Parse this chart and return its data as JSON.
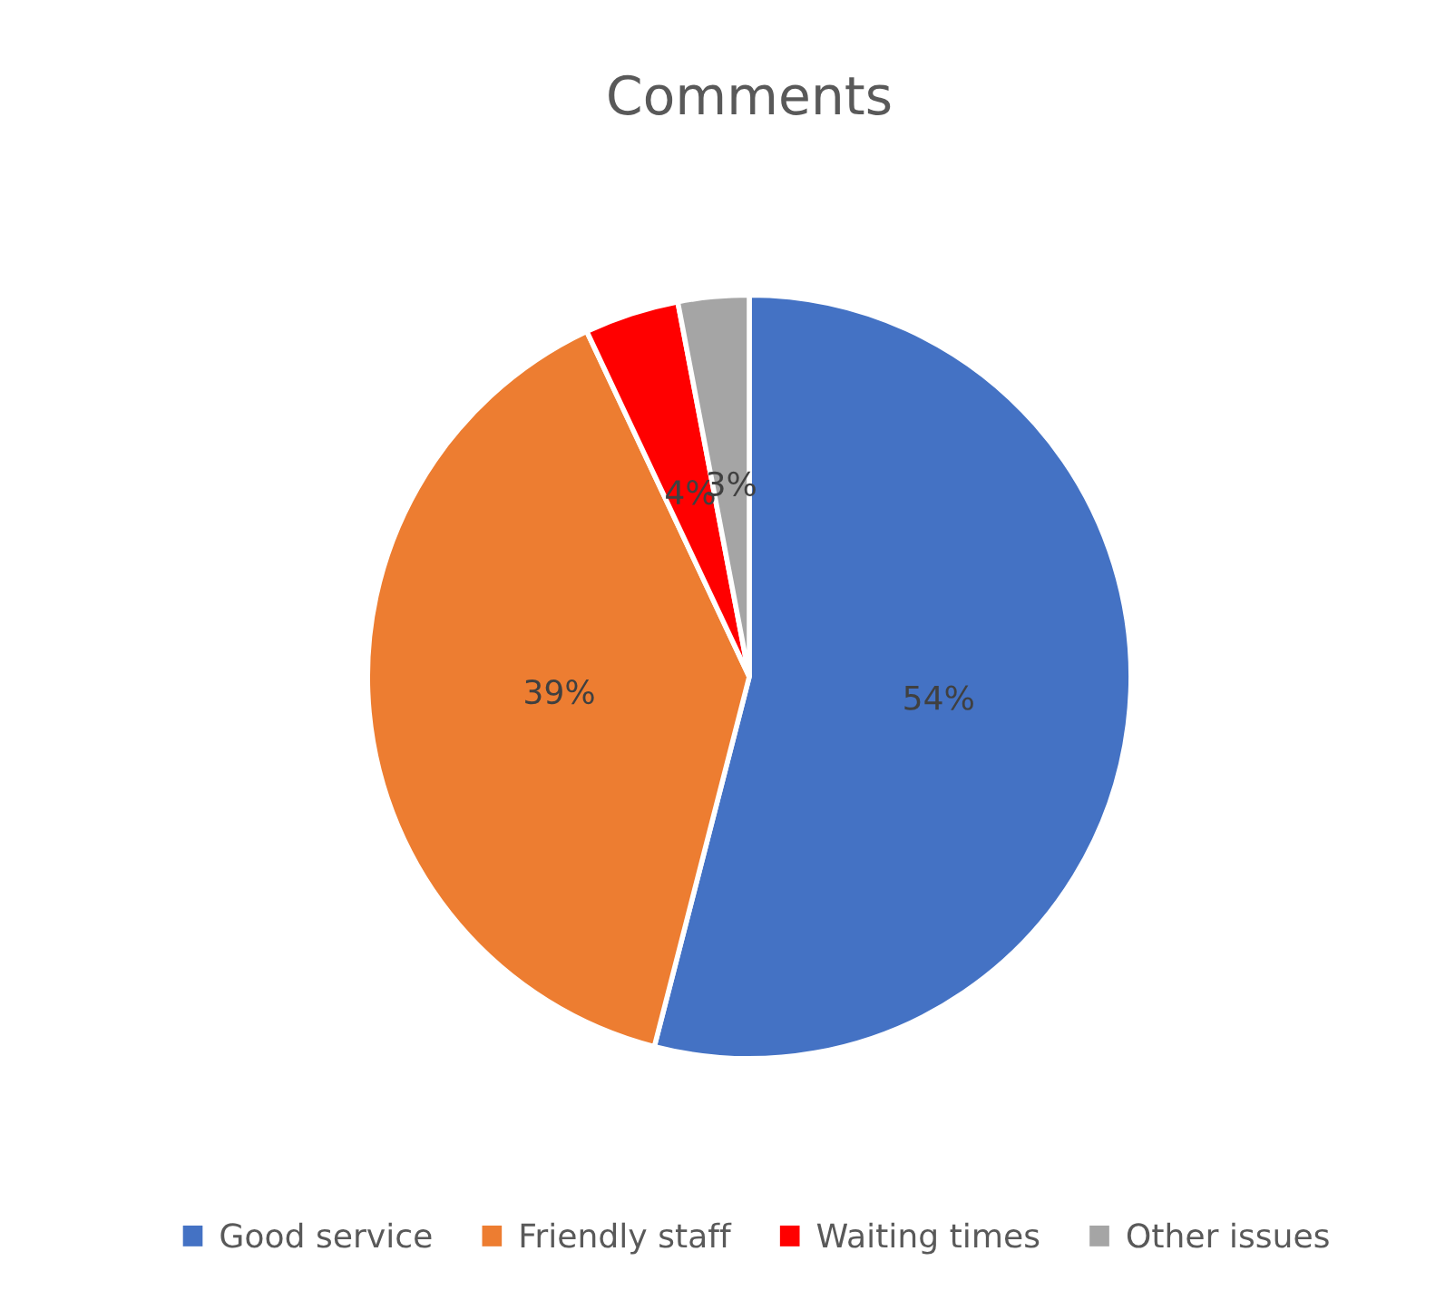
{
  "chart_data": {
    "type": "pie",
    "title": "Comments",
    "categories": [
      "Good service",
      "Friendly staff",
      "Waiting times",
      "Other issues"
    ],
    "values": [
      54,
      39,
      4,
      3
    ],
    "colors": [
      "#4472c4",
      "#ed7d31",
      "#ff0000",
      "#a5a5a5"
    ],
    "value_labels": [
      "54%",
      "39%",
      "4%",
      "3%"
    ],
    "legend": "bottom"
  }
}
